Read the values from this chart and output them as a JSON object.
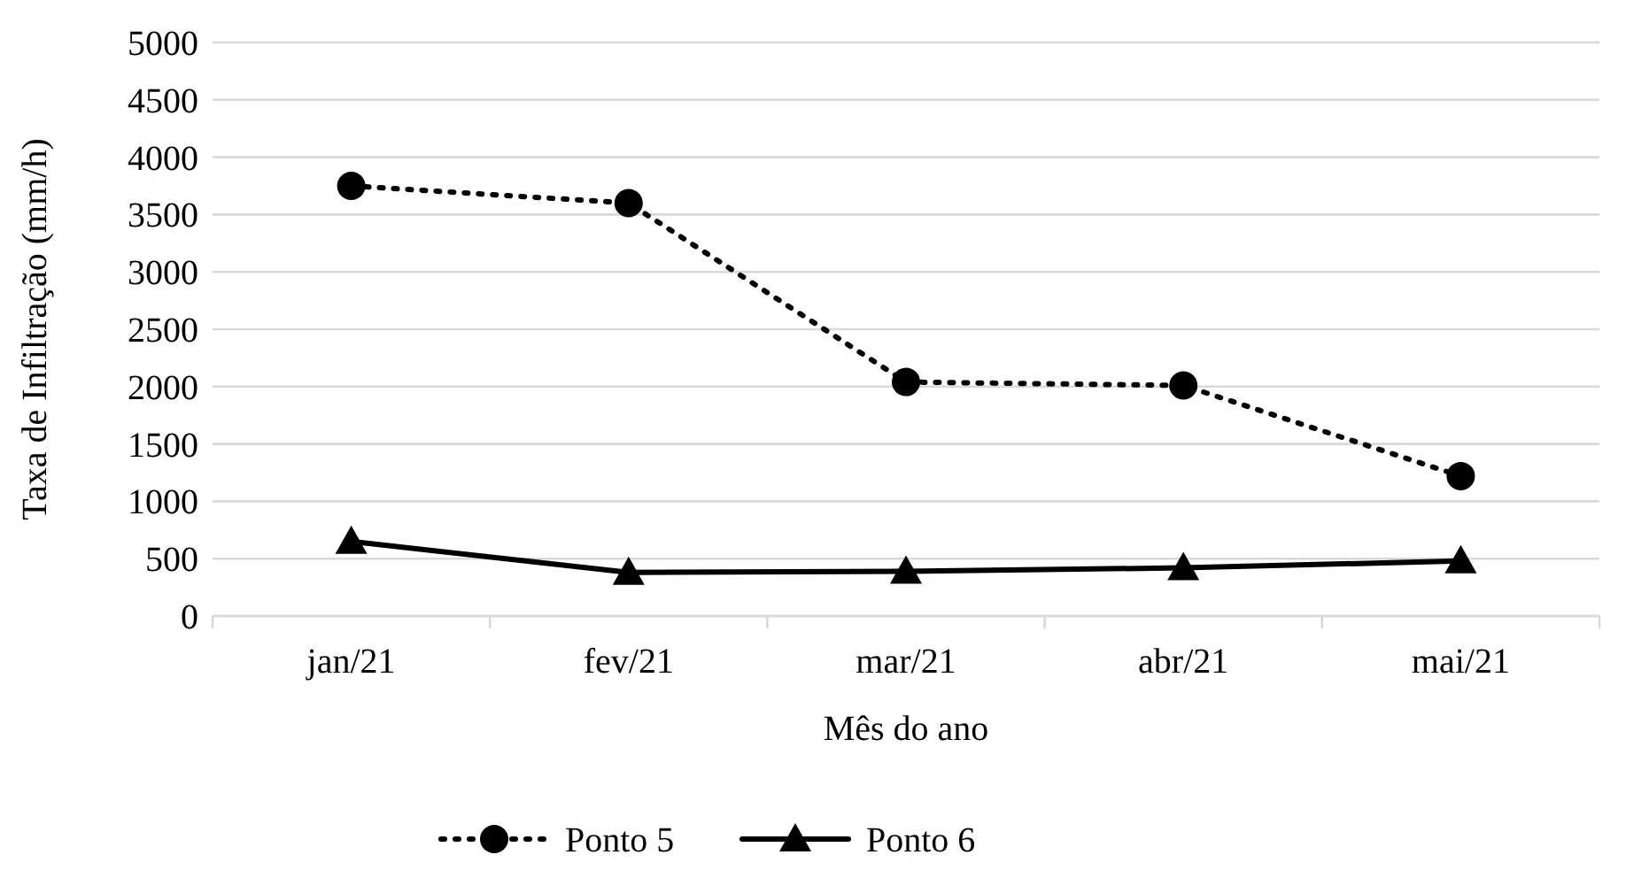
{
  "chart_data": {
    "type": "line",
    "xlabel": "Mês do ano",
    "ylabel": "Taxa de Infiltração (mm/h)",
    "categories": [
      "jan/21",
      "fev/21",
      "mar/21",
      "abr/21",
      "mai/21"
    ],
    "series": [
      {
        "name": "Ponto 5",
        "color": "#000000",
        "values": [
          3750,
          3600,
          2040,
          2010,
          1220
        ],
        "marker": "circle",
        "line_style": "dotted"
      },
      {
        "name": "Ponto 6",
        "color": "#000000",
        "values": [
          650,
          380,
          390,
          420,
          480
        ],
        "marker": "triangle",
        "line_style": "solid"
      }
    ],
    "ylim": [
      0,
      5000
    ],
    "yticks": [
      0,
      500,
      1000,
      1500,
      2000,
      2500,
      3000,
      3500,
      4000,
      4500,
      5000
    ],
    "grid": "y",
    "legend": "bottom"
  }
}
